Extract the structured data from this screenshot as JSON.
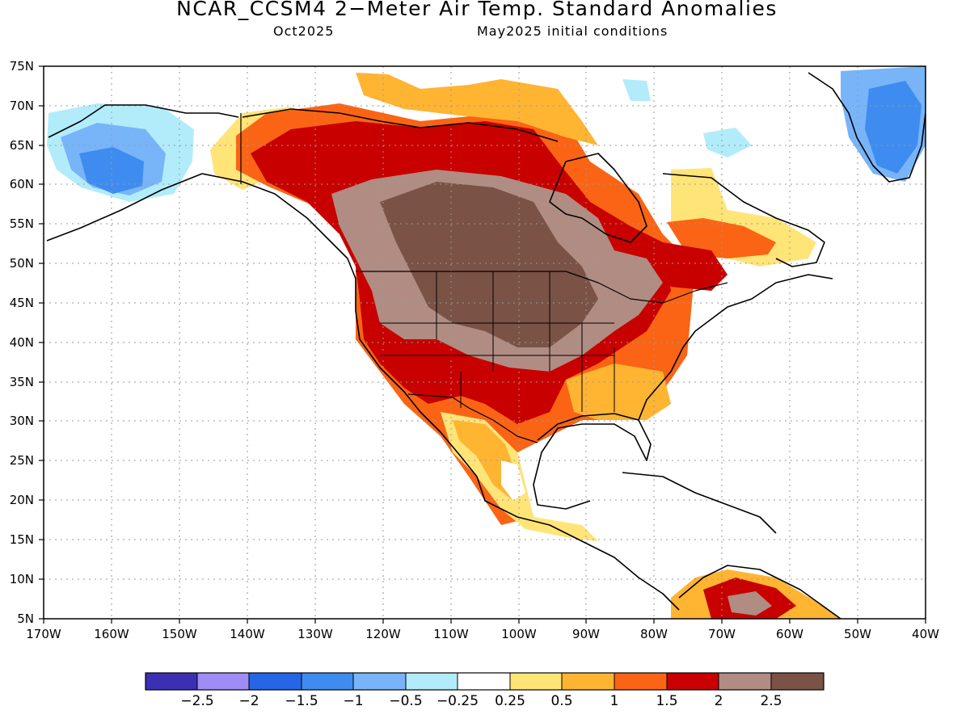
{
  "header": {
    "title": "NCAR_CCSM4 2−Meter Air Temp. Standard Anomalies",
    "valid_month": "Oct2025",
    "init": "May2025 initial conditions"
  },
  "map": {
    "lon_range": [
      -170,
      -40
    ],
    "lat_range": [
      5,
      75
    ],
    "lat_labels": [
      "5N",
      "10N",
      "15N",
      "20N",
      "25N",
      "30N",
      "35N",
      "40N",
      "45N",
      "50N",
      "55N",
      "60N",
      "65N",
      "70N",
      "75N"
    ],
    "lon_labels": [
      "170W",
      "160W",
      "150W",
      "140W",
      "130W",
      "120W",
      "110W",
      "100W",
      "90W",
      "80W",
      "70W",
      "60W",
      "50W",
      "40W"
    ],
    "grid_lines": "dotted"
  },
  "colorbar": {
    "colors": [
      "#3c2fb4",
      "#a08cf5",
      "#2666e6",
      "#3e8cf0",
      "#78b4f8",
      "#b2ecfa",
      "#ffffff",
      "#ffe478",
      "#ffb432",
      "#fa6414",
      "#c80000",
      "#b08c82",
      "#7a5246"
    ],
    "labels": [
      "−2.5",
      "−2",
      "−1.5",
      "−1",
      "−0.5",
      "−0.25",
      "0.25",
      "0.5",
      "1",
      "1.5",
      "2",
      "2.5"
    ]
  }
}
